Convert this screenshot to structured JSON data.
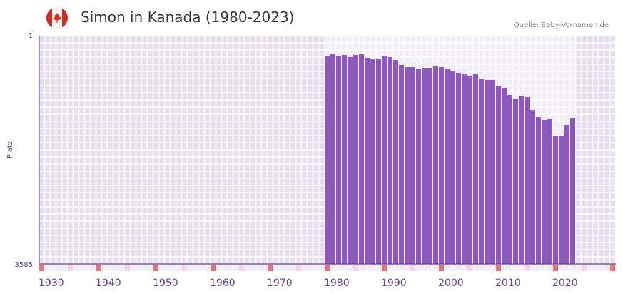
{
  "header": {
    "title": "Simon in Kanada (1980-2023)",
    "source": "Quelle: Baby-Vornamen.de",
    "flag_icon": "canada-flag-icon"
  },
  "colors": {
    "bar": "#8e55c7",
    "axis": "#6a3d9a",
    "marker_decade": "#e8727a",
    "marker_half": "#f5d6de",
    "bg_outside": "#e3dfec",
    "bg_inside": "#f1edf9"
  },
  "chart_data": {
    "type": "bar",
    "title": "Simon in Kanada (1980-2023)",
    "xlabel": "",
    "ylabel": "Platz",
    "ylim": [
      3585,
      1
    ],
    "y_inverted": true,
    "yticks": [
      "1",
      "3585"
    ],
    "xlim": [
      1930,
      2030
    ],
    "xticks": [
      "1930",
      "1940",
      "1950",
      "1960",
      "1970",
      "1980",
      "1990",
      "2000",
      "2010",
      "2020"
    ],
    "grid": true,
    "x": [
      1980,
      1981,
      1982,
      1983,
      1984,
      1985,
      1986,
      1987,
      1988,
      1989,
      1990,
      1991,
      1992,
      1993,
      1994,
      1995,
      1996,
      1997,
      1998,
      1999,
      2000,
      2001,
      2002,
      2003,
      2004,
      2005,
      2006,
      2007,
      2008,
      2009,
      2010,
      2011,
      2012,
      2013,
      2014,
      2015,
      2016,
      2017,
      2018,
      2019,
      2020,
      2021,
      2022,
      2023
    ],
    "values": [
      315,
      292,
      315,
      303,
      337,
      303,
      292,
      348,
      359,
      371,
      315,
      337,
      382,
      460,
      494,
      494,
      527,
      505,
      505,
      483,
      494,
      516,
      550,
      583,
      595,
      628,
      606,
      684,
      695,
      695,
      785,
      819,
      931,
      998,
      942,
      964,
      1166,
      1278,
      1323,
      1311,
      1580,
      1569,
      1401,
      1300
    ]
  }
}
